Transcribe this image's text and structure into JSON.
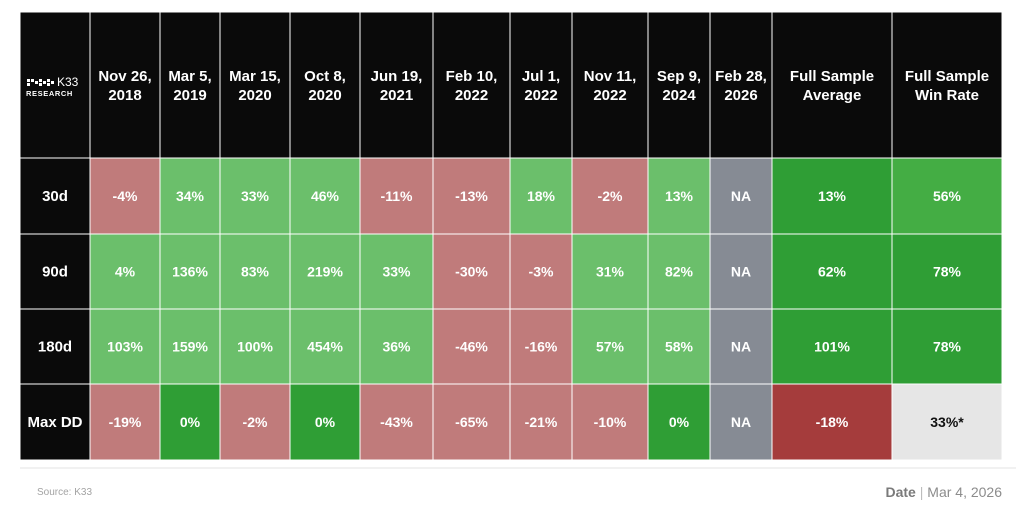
{
  "brand": {
    "name": "K33",
    "sub": "RESEARCH"
  },
  "chart_data": {
    "type": "heatmap",
    "columns": [
      [
        "Nov 26,",
        "2018"
      ],
      [
        "Mar 5,",
        "2019"
      ],
      [
        "Mar 15,",
        "2020"
      ],
      [
        "Oct 8,",
        "2020"
      ],
      [
        "Jun 19,",
        "2021"
      ],
      [
        "Feb 10,",
        "2022"
      ],
      [
        "Jul 1,",
        "2022"
      ],
      [
        "Nov 11,",
        "2022"
      ],
      [
        "Sep 9,",
        "2024"
      ],
      [
        "Feb 28,",
        "2026"
      ],
      [
        "Full Sample",
        "Average"
      ],
      [
        "Full Sample",
        "Win Rate"
      ]
    ],
    "rows": [
      {
        "label": "30d",
        "values": [
          "-4%",
          "34%",
          "33%",
          "46%",
          "-11%",
          "-13%",
          "18%",
          "-2%",
          "13%",
          "NA",
          "13%",
          "56%"
        ],
        "colors": [
          "#c07b7b",
          "#6bbf6b",
          "#6bbf6b",
          "#6bbf6b",
          "#c07b7b",
          "#c07b7b",
          "#6bbf6b",
          "#c07b7b",
          "#6bbf6b",
          "#868b94",
          "#2f9e35",
          "#44ad44"
        ]
      },
      {
        "label": "90d",
        "values": [
          "4%",
          "136%",
          "83%",
          "219%",
          "33%",
          "-30%",
          "-3%",
          "31%",
          "82%",
          "NA",
          "62%",
          "78%"
        ],
        "colors": [
          "#6bbf6b",
          "#6bbf6b",
          "#6bbf6b",
          "#6bbf6b",
          "#6bbf6b",
          "#c07b7b",
          "#c07b7b",
          "#6bbf6b",
          "#6bbf6b",
          "#868b94",
          "#2f9e35",
          "#2f9e35"
        ]
      },
      {
        "label": "180d",
        "values": [
          "103%",
          "159%",
          "100%",
          "454%",
          "36%",
          "-46%",
          "-16%",
          "57%",
          "58%",
          "NA",
          "101%",
          "78%"
        ],
        "colors": [
          "#6bbf6b",
          "#6bbf6b",
          "#6bbf6b",
          "#6bbf6b",
          "#6bbf6b",
          "#c07b7b",
          "#c07b7b",
          "#6bbf6b",
          "#6bbf6b",
          "#868b94",
          "#2f9e35",
          "#2f9e35"
        ]
      },
      {
        "label": "Max DD",
        "values": [
          "-19%",
          "0%",
          "-2%",
          "0%",
          "-43%",
          "-65%",
          "-21%",
          "-10%",
          "0%",
          "NA",
          "-18%",
          "33%*"
        ],
        "colors": [
          "#c07b7b",
          "#2f9e35",
          "#c07b7b",
          "#2f9e35",
          "#c07b7b",
          "#c07b7b",
          "#c07b7b",
          "#c07b7b",
          "#2f9e35",
          "#868b94",
          "#a53c3c",
          "#e6e6e6"
        ]
      }
    ],
    "header_bg": "#0a0a0a",
    "light_cell_text_color": "#111111"
  },
  "footer": {
    "source": "Source:  K33",
    "date_label": "Date",
    "date_value": "Mar 4, 2026"
  }
}
